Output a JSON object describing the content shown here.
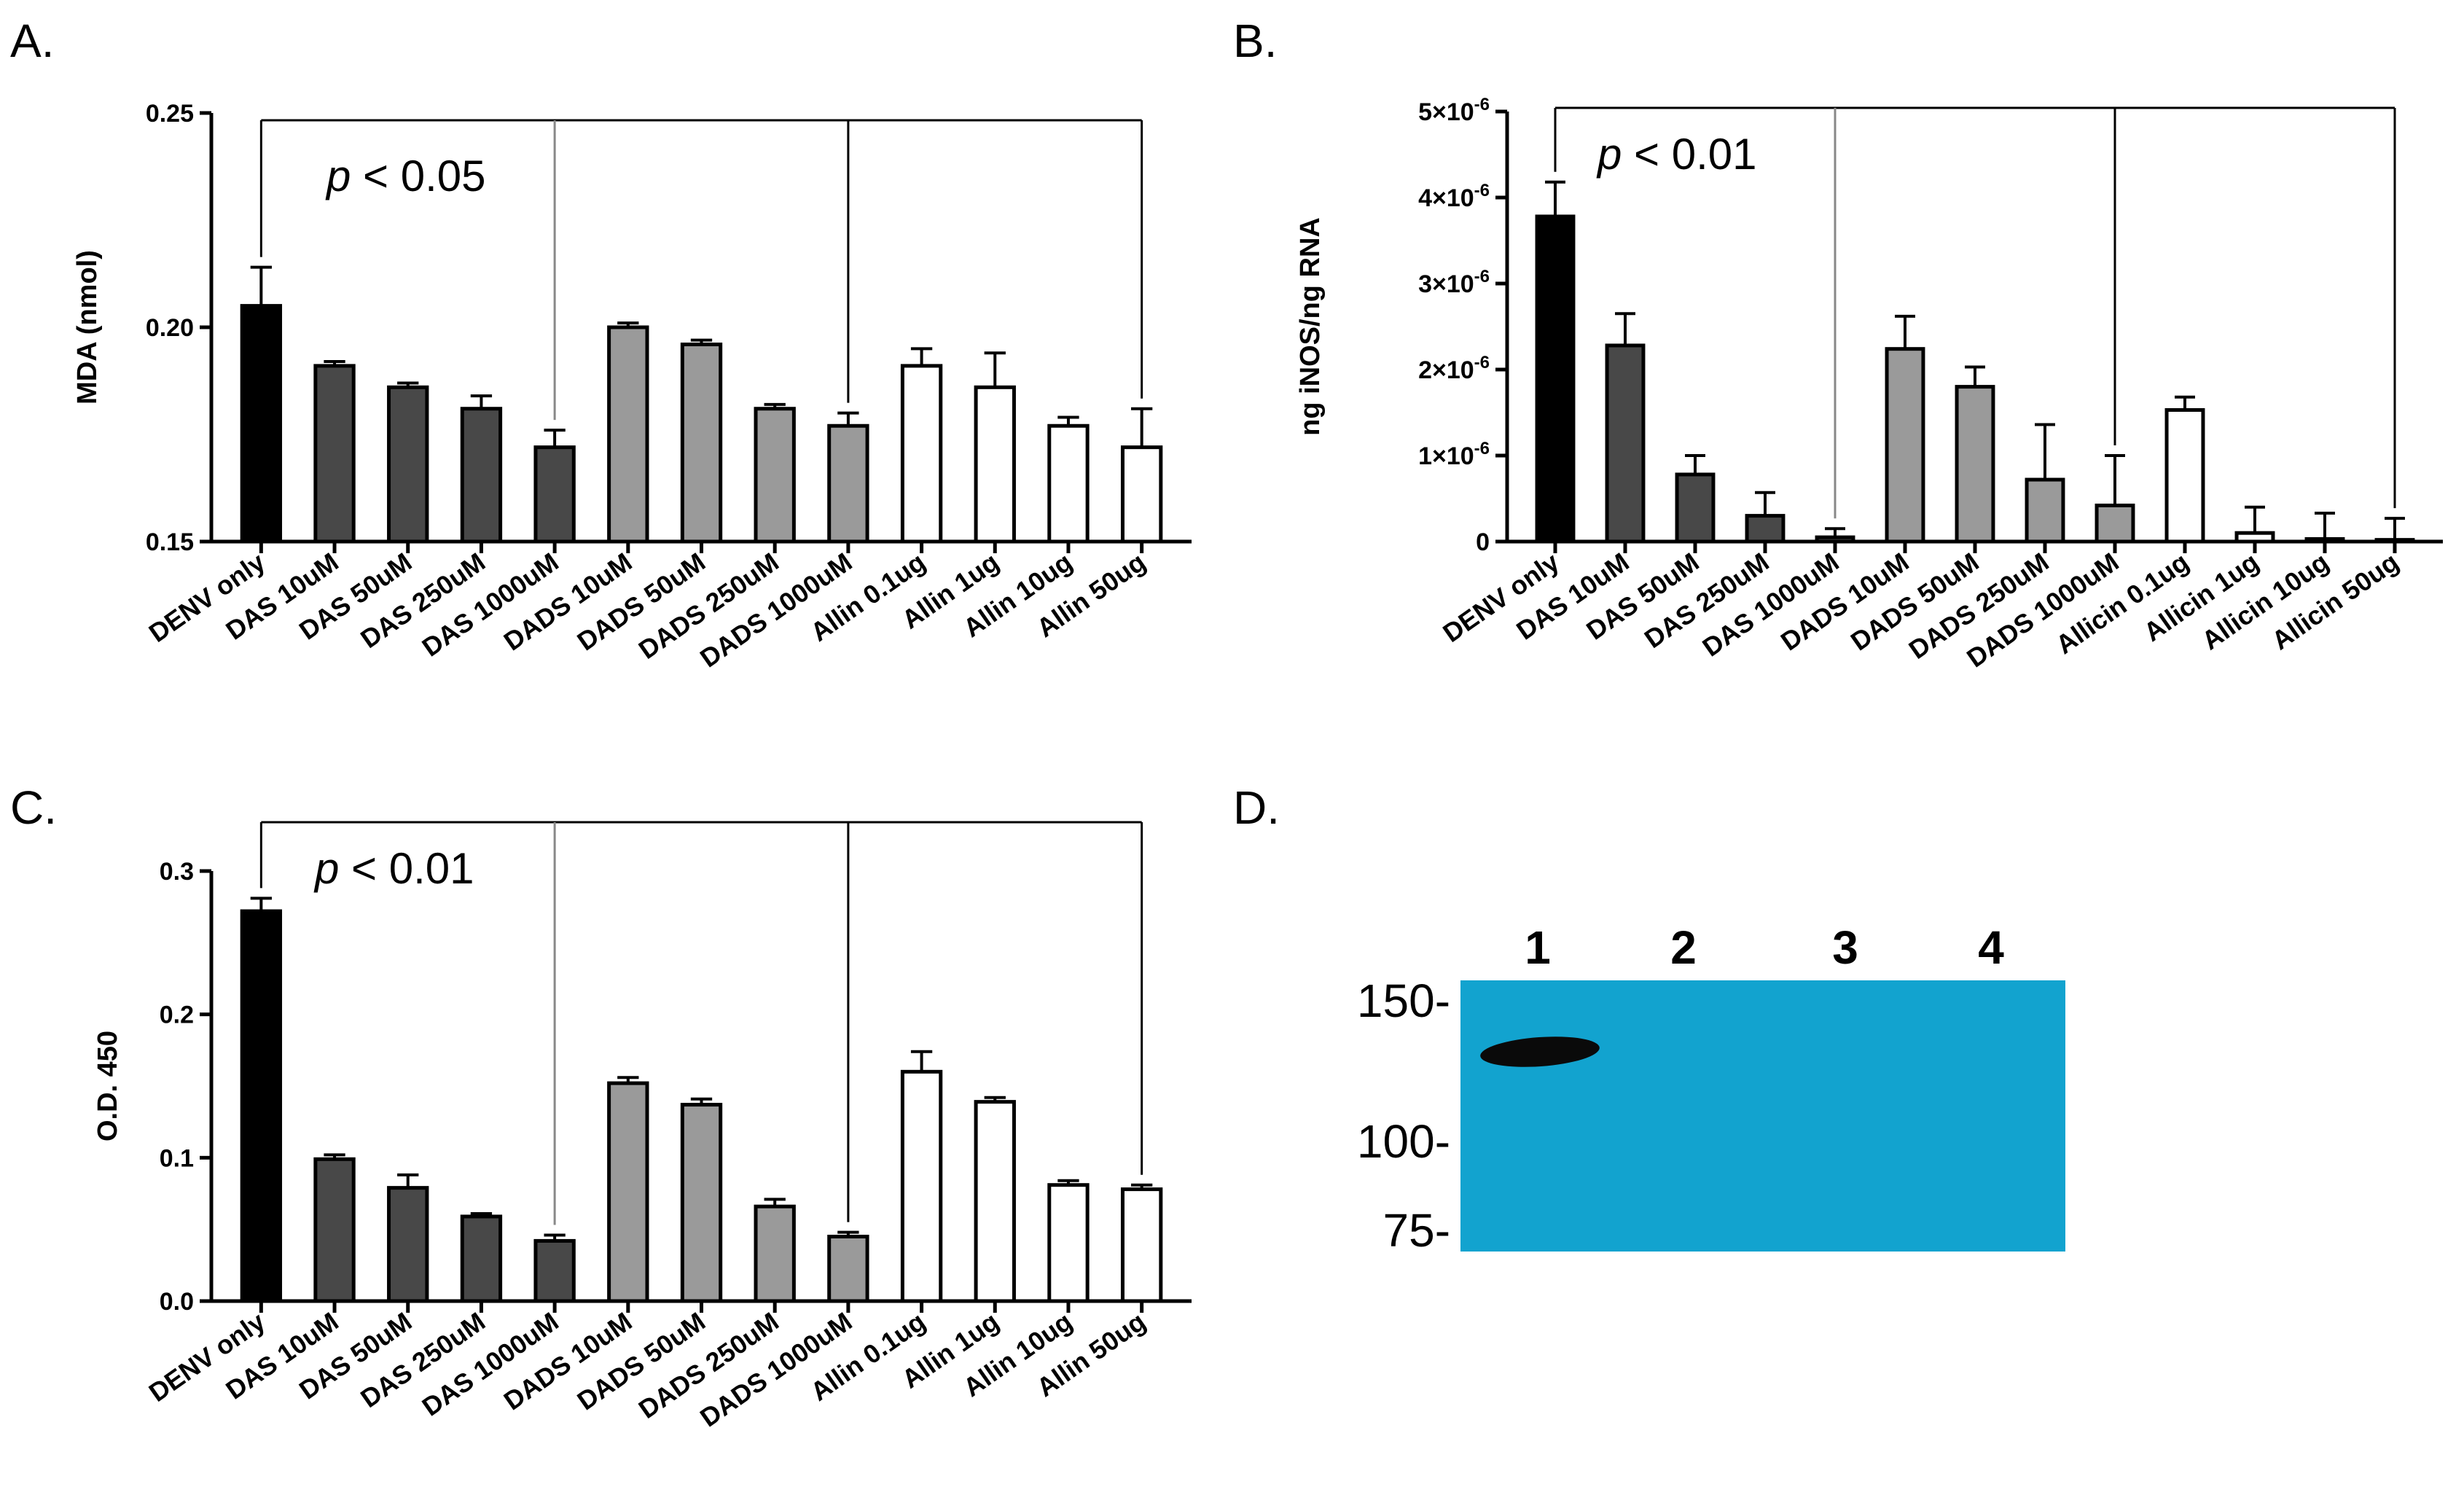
{
  "colors": {
    "black_bar": "#000000",
    "das_bar": "#484848",
    "dads_bar": "#9a9a9a",
    "allicin_bar": "#ffffff",
    "blot_background": "#12a3cf",
    "blot_band": "#0a0a0a"
  },
  "chart_data": [
    {
      "type": "bar",
      "panel_label": "A.",
      "ylabel": "MDA (nmol)",
      "ylim": [
        0.15,
        0.25
      ],
      "yticks": [
        "0.15",
        "0.20",
        "0.25"
      ],
      "yticks_values": [
        0.15,
        0.2,
        0.25
      ],
      "categories": [
        "DENV only",
        "DAS 10uM",
        "DAS 50uM",
        "DAS 250uM",
        "DAS 1000uM",
        "DADS 10uM",
        "DADS 50uM",
        "DADS 250uM",
        "DADS 1000uM",
        "Allin 0.1ug",
        "Allin 1ug",
        "Allin 10ug",
        "Allin 50ug"
      ],
      "values": [
        0.205,
        0.191,
        0.186,
        0.181,
        0.172,
        0.2,
        0.196,
        0.181,
        0.177,
        0.191,
        0.186,
        0.177,
        0.172
      ],
      "errors": [
        0.009,
        0.001,
        0.001,
        0.003,
        0.004,
        0.001,
        0.001,
        0.001,
        0.003,
        0.004,
        0.008,
        0.002,
        0.009
      ],
      "groups": [
        "black",
        "das",
        "das",
        "das",
        "das",
        "dads",
        "dads",
        "dads",
        "dads",
        "allicin",
        "allicin",
        "allicin",
        "allicin"
      ],
      "annotation": {
        "p_letter": "p",
        "p_rest": " < 0.05"
      },
      "bracket_targets": [
        4,
        8,
        12
      ],
      "grid": false
    },
    {
      "type": "bar",
      "panel_label": "B.",
      "ylabel": "ng iNOS/ng RNA",
      "ylim": [
        0,
        5e-06
      ],
      "yticks": [
        "0",
        "1×10",
        "2×10",
        "3×10",
        "4×10",
        "5×10"
      ],
      "ytick_exponent": "-6",
      "yticks_values": [
        0,
        1e-06,
        2e-06,
        3e-06,
        4e-06,
        5e-06
      ],
      "categories": [
        "DENV only",
        "DAS 10uM",
        "DAS 50uM",
        "DAS 250uM",
        "DAS 1000uM",
        "DADS 10uM",
        "DADS 50uM",
        "DADS 250uM",
        "DADS 1000uM",
        "Allicin 0.1ug",
        "Allicin 1ug",
        "Allicin 10ug",
        "Allicin 50ug"
      ],
      "values": [
        3.78e-06,
        2.28e-06,
        7.8e-07,
        3e-07,
        5e-08,
        2.24e-06,
        1.8e-06,
        7.2e-07,
        4.2e-07,
        1.53e-06,
        1e-07,
        3e-08,
        2e-08
      ],
      "errors": [
        4e-07,
        3.7e-07,
        2.2e-07,
        2.7e-07,
        1e-07,
        3.8e-07,
        2.3e-07,
        6.4e-07,
        5.8e-07,
        1.5e-07,
        3e-07,
        3e-07,
        2.5e-07
      ],
      "groups": [
        "black",
        "das",
        "das",
        "das",
        "das",
        "dads",
        "dads",
        "dads",
        "dads",
        "allicin",
        "allicin",
        "allicin",
        "allicin"
      ],
      "annotation": {
        "p_letter": "p",
        "p_rest": " < 0.01"
      },
      "bracket_targets": [
        4,
        8,
        12
      ],
      "grid": false
    },
    {
      "type": "bar",
      "panel_label": "C.",
      "ylabel": "O.D. 450",
      "ylim": [
        0,
        0.3
      ],
      "yticks": [
        "0.0",
        "0.1",
        "0.2",
        "0.3"
      ],
      "yticks_values": [
        0,
        0.1,
        0.2,
        0.3
      ],
      "categories": [
        "DENV only",
        "DAS 10uM",
        "DAS 50uM",
        "DAS 250uM",
        "DAS 1000uM",
        "DADS 10uM",
        "DADS 50uM",
        "DADS 250uM",
        "DADS 1000uM",
        "Allin 0.1ug",
        "Allin 1ug",
        "Allin 10ug",
        "Allin 50ug"
      ],
      "values": [
        0.272,
        0.099,
        0.079,
        0.059,
        0.042,
        0.152,
        0.137,
        0.066,
        0.045,
        0.16,
        0.139,
        0.081,
        0.078
      ],
      "errors": [
        0.009,
        0.003,
        0.009,
        0.002,
        0.004,
        0.004,
        0.004,
        0.005,
        0.003,
        0.014,
        0.003,
        0.003,
        0.003
      ],
      "groups": [
        "black",
        "das",
        "das",
        "das",
        "das",
        "dads",
        "dads",
        "dads",
        "dads",
        "allicin",
        "allicin",
        "allicin",
        "allicin"
      ],
      "annotation": {
        "p_letter": "p",
        "p_rest": " < 0.01"
      },
      "bracket_targets": [
        4,
        8,
        12
      ],
      "grid": false
    }
  ],
  "blot": {
    "panel_label": "D.",
    "lanes": [
      "1",
      "2",
      "3",
      "4"
    ],
    "markers": [
      "150-",
      "100-",
      "75-"
    ],
    "band_lanes": [
      "1"
    ]
  }
}
